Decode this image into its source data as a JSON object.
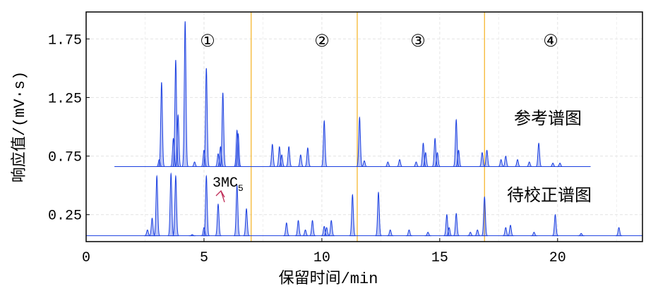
{
  "chart_data": {
    "type": "chromatogram",
    "xlabel": "保留时间/min",
    "ylabel": "响应值/(mV·s)",
    "xlim": [
      0,
      23.6
    ],
    "ylim": [
      0.02,
      1.98
    ],
    "xticks": [
      0,
      5,
      10,
      15,
      20
    ],
    "yticks": [
      0.25,
      0.75,
      1.25,
      1.75
    ],
    "grid": true,
    "dividers": {
      "color": "#f5b731",
      "x": [
        7.0,
        11.5,
        16.9
      ]
    },
    "regions": [
      "①",
      "②",
      "③",
      "④"
    ],
    "series": [
      {
        "name": "参考谱图",
        "color": "#1a3fe0",
        "baseline": 0.66,
        "range": [
          1.2,
          21.4
        ],
        "x": [
          3.1,
          3.2,
          3.7,
          3.8,
          3.9,
          4.2,
          4.6,
          5.0,
          5.1,
          5.6,
          5.7,
          5.8,
          6.4,
          6.45,
          7.9,
          8.2,
          8.3,
          8.6,
          9.1,
          9.4,
          10.1,
          11.6,
          11.8,
          12.8,
          13.3,
          14.0,
          14.3,
          14.4,
          14.8,
          14.9,
          15.7,
          15.8,
          16.8,
          17.0,
          17.6,
          17.8,
          18.3,
          18.8,
          19.2,
          19.8,
          20.1
        ],
        "values": [
          0.72,
          1.38,
          0.9,
          1.57,
          1.1,
          1.9,
          0.7,
          0.8,
          1.5,
          0.77,
          0.83,
          1.29,
          0.97,
          0.94,
          0.85,
          0.83,
          0.76,
          0.83,
          0.76,
          0.82,
          1.05,
          1.08,
          0.71,
          0.7,
          0.72,
          0.7,
          0.86,
          0.78,
          0.9,
          0.78,
          1.06,
          0.8,
          0.78,
          0.8,
          0.72,
          0.75,
          0.72,
          0.7,
          0.86,
          0.69,
          0.69
        ]
      },
      {
        "name": "待校正谱图",
        "color": "#1a3fe0",
        "baseline": 0.07,
        "range": [
          0,
          23.6
        ],
        "x": [
          2.6,
          2.8,
          3.0,
          3.6,
          3.8,
          4.5,
          5.0,
          5.1,
          5.6,
          6.4,
          6.8,
          8.5,
          9.0,
          9.3,
          9.6,
          10.1,
          10.2,
          10.4,
          11.3,
          12.4,
          12.9,
          13.7,
          14.5,
          15.3,
          15.4,
          15.7,
          16.3,
          16.6,
          16.9,
          17.8,
          18.0,
          19.0,
          19.9,
          21.0,
          22.6
        ],
        "values": [
          0.12,
          0.22,
          0.58,
          0.6,
          0.58,
          0.08,
          0.14,
          0.58,
          0.34,
          0.5,
          0.3,
          0.18,
          0.2,
          0.12,
          0.2,
          0.15,
          0.14,
          0.2,
          0.42,
          0.44,
          0.12,
          0.12,
          0.1,
          0.25,
          0.14,
          0.26,
          0.1,
          0.12,
          0.4,
          0.14,
          0.16,
          0.1,
          0.25,
          0.09,
          0.14
        ]
      }
    ],
    "annotation": {
      "text": "3MC",
      "sub": "5"
    }
  }
}
